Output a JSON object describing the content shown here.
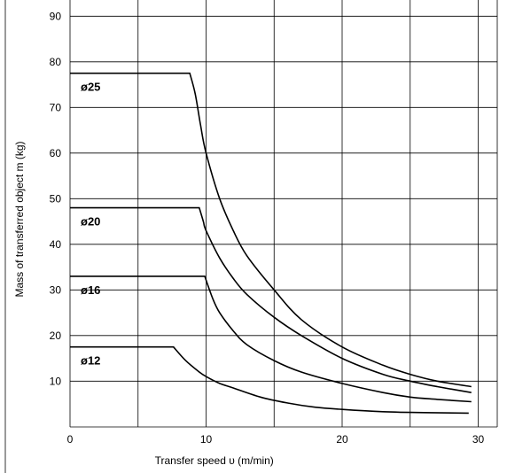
{
  "chart_data": {
    "type": "line",
    "xlabel": "Transfer speed υ (m/min)",
    "ylabel": "Mass of transferred object m (kg)",
    "xlim": [
      0,
      32
    ],
    "ylim": [
      0,
      92
    ],
    "xticks": [
      0,
      10,
      20,
      30
    ],
    "yticks": [
      10,
      20,
      30,
      40,
      50,
      60,
      70,
      80,
      90
    ],
    "x_gridlines": [
      0,
      5,
      10,
      15,
      20,
      25,
      30
    ],
    "y_gridlines": [
      10,
      20,
      30,
      40,
      50,
      60,
      70,
      80,
      90
    ],
    "grid": true,
    "series": [
      {
        "name": "ø25",
        "points": [
          [
            0,
            77.5
          ],
          [
            8.8,
            77.5
          ],
          [
            9.2,
            73
          ],
          [
            9.6,
            66
          ],
          [
            10,
            60
          ],
          [
            11,
            50
          ],
          [
            12,
            43
          ],
          [
            13,
            37.5
          ],
          [
            15,
            30
          ],
          [
            17,
            23.5
          ],
          [
            20,
            17.5
          ],
          [
            23,
            13.5
          ],
          [
            25,
            11.5
          ],
          [
            27,
            10
          ],
          [
            29.5,
            8.8
          ]
        ]
      },
      {
        "name": "ø20",
        "points": [
          [
            0,
            48
          ],
          [
            9.5,
            48
          ],
          [
            9.8,
            45
          ],
          [
            10,
            43
          ],
          [
            11,
            37
          ],
          [
            12,
            32.5
          ],
          [
            13,
            29
          ],
          [
            15,
            24
          ],
          [
            17,
            20
          ],
          [
            20,
            15
          ],
          [
            23,
            11.5
          ],
          [
            25,
            10
          ],
          [
            27,
            8.8
          ],
          [
            29.5,
            7.5
          ]
        ]
      },
      {
        "name": "ø16",
        "points": [
          [
            0,
            33
          ],
          [
            9.9,
            33
          ],
          [
            10.5,
            28
          ],
          [
            11,
            25
          ],
          [
            12,
            21
          ],
          [
            13,
            18
          ],
          [
            15,
            14.5
          ],
          [
            17,
            12
          ],
          [
            20,
            9.5
          ],
          [
            23,
            7.5
          ],
          [
            25,
            6.5
          ],
          [
            27,
            6
          ],
          [
            29.5,
            5.5
          ]
        ]
      },
      {
        "name": "ø12",
        "points": [
          [
            0,
            17.5
          ],
          [
            7.6,
            17.5
          ],
          [
            8.5,
            14.5
          ],
          [
            9.5,
            12
          ],
          [
            10,
            11
          ],
          [
            11,
            9.5
          ],
          [
            12,
            8.5
          ],
          [
            14,
            6.5
          ],
          [
            16,
            5.2
          ],
          [
            18,
            4.3
          ],
          [
            20,
            3.8
          ],
          [
            23,
            3.3
          ],
          [
            26,
            3.1
          ],
          [
            29.3,
            3
          ]
        ]
      }
    ]
  }
}
